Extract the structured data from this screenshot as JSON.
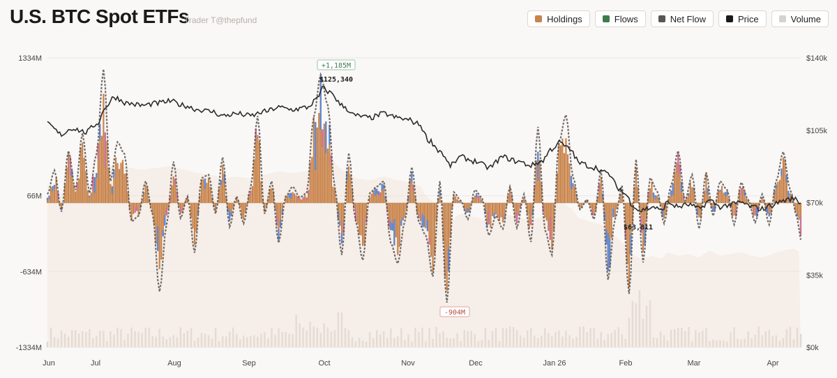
{
  "header": {
    "title": "U.S. BTC Spot ETFs",
    "subtitle": "Trader T@thepfund"
  },
  "legend": [
    {
      "label": "Holdings",
      "color": "#c8834a"
    },
    {
      "label": "Flows",
      "color": "#3f7a4e"
    },
    {
      "label": "Net Flow",
      "color": "#5a5652"
    },
    {
      "label": "Price",
      "color": "#1a1a1a"
    },
    {
      "label": "Volume",
      "color": "#d6d2cd"
    }
  ],
  "colors": {
    "holdings": "#c8834a",
    "flows_blue": "#5b86d6",
    "flows_pink": "#cf6f9a",
    "net_line": "#5a5652",
    "price": "#2a2a2a",
    "volume": "#d9d6d2",
    "annotation_pos": "#3f7a4e",
    "annotation_neg": "#b84a3e"
  },
  "chart_data": {
    "type": "bar",
    "left_axis": {
      "ticks": [
        1334,
        66,
        -634,
        -1334
      ],
      "tick_labels": [
        "1334M",
        "66M",
        "-634M",
        "-1334M"
      ],
      "range": [
        -1334,
        1334
      ]
    },
    "right_axis": {
      "ticks": [
        140000,
        105000,
        70000,
        35000,
        0
      ],
      "tick_labels": [
        "$140k",
        "$105k",
        "$70k",
        "$35k",
        "$0k"
      ],
      "range": [
        0,
        140000
      ]
    },
    "x_ticks": [
      "Jun",
      "Jul",
      "Aug",
      "Sep",
      "Oct",
      "Nov",
      "Dec",
      "Jan 26",
      "Feb",
      "Mar",
      "Apr"
    ],
    "annotations": [
      {
        "label": "+1,185M",
        "kind": "max_flow"
      },
      {
        "label": "$125,340",
        "kind": "max_price"
      },
      {
        "label": "-904M",
        "kind": "min_flow"
      },
      {
        "label": "$63,811",
        "kind": "min_price"
      }
    ],
    "flow_keypoints": [
      [
        0,
        80
      ],
      [
        4,
        300
      ],
      [
        8,
        -80
      ],
      [
        12,
        480
      ],
      [
        16,
        120
      ],
      [
        20,
        640
      ],
      [
        24,
        90
      ],
      [
        28,
        450
      ],
      [
        32,
        1230
      ],
      [
        36,
        200
      ],
      [
        40,
        560
      ],
      [
        44,
        450
      ],
      [
        48,
        -170
      ],
      [
        52,
        -120
      ],
      [
        56,
        200
      ],
      [
        60,
        -100
      ],
      [
        64,
        -820
      ],
      [
        68,
        -200
      ],
      [
        72,
        380
      ],
      [
        76,
        -140
      ],
      [
        80,
        60
      ],
      [
        84,
        -460
      ],
      [
        88,
        230
      ],
      [
        92,
        260
      ],
      [
        96,
        -100
      ],
      [
        100,
        420
      ],
      [
        104,
        -220
      ],
      [
        108,
        60
      ],
      [
        112,
        -190
      ],
      [
        116,
        140
      ],
      [
        120,
        800
      ],
      [
        124,
        -100
      ],
      [
        128,
        200
      ],
      [
        132,
        -370
      ],
      [
        136,
        60
      ],
      [
        140,
        150
      ],
      [
        144,
        50
      ],
      [
        148,
        90
      ],
      [
        152,
        790
      ],
      [
        156,
        1180
      ],
      [
        160,
        900
      ],
      [
        164,
        150
      ],
      [
        168,
        -480
      ],
      [
        172,
        460
      ],
      [
        176,
        -170
      ],
      [
        180,
        -530
      ],
      [
        184,
        90
      ],
      [
        188,
        150
      ],
      [
        192,
        200
      ],
      [
        196,
        -370
      ],
      [
        200,
        -560
      ],
      [
        204,
        -170
      ],
      [
        208,
        330
      ],
      [
        212,
        -180
      ],
      [
        216,
        -300
      ],
      [
        220,
        -680
      ],
      [
        224,
        200
      ],
      [
        228,
        -920
      ],
      [
        232,
        100
      ],
      [
        236,
        20
      ],
      [
        240,
        -150
      ],
      [
        244,
        120
      ],
      [
        248,
        50
      ],
      [
        252,
        -300
      ],
      [
        256,
        -120
      ],
      [
        260,
        -240
      ],
      [
        264,
        150
      ],
      [
        268,
        -230
      ],
      [
        272,
        80
      ],
      [
        276,
        -360
      ],
      [
        280,
        700
      ],
      [
        284,
        -250
      ],
      [
        288,
        -480
      ],
      [
        292,
        560
      ],
      [
        296,
        810
      ],
      [
        300,
        240
      ],
      [
        304,
        -60
      ],
      [
        308,
        30
      ],
      [
        312,
        -150
      ],
      [
        316,
        300
      ],
      [
        320,
        -710
      ],
      [
        324,
        -150
      ],
      [
        328,
        160
      ],
      [
        332,
        -840
      ],
      [
        336,
        400
      ],
      [
        340,
        -550
      ],
      [
        344,
        230
      ],
      [
        348,
        110
      ],
      [
        352,
        -190
      ],
      [
        356,
        160
      ],
      [
        360,
        480
      ],
      [
        364,
        20
      ],
      [
        368,
        260
      ],
      [
        372,
        -240
      ],
      [
        376,
        280
      ],
      [
        380,
        -120
      ],
      [
        384,
        200
      ],
      [
        388,
        120
      ],
      [
        392,
        -200
      ],
      [
        396,
        190
      ],
      [
        400,
        30
      ],
      [
        404,
        -180
      ],
      [
        408,
        80
      ],
      [
        412,
        -200
      ],
      [
        416,
        200
      ],
      [
        420,
        470
      ],
      [
        424,
        120
      ],
      [
        428,
        -140
      ],
      [
        430,
        -340
      ]
    ],
    "price_keypoints": [
      [
        0,
        108000
      ],
      [
        8,
        103000
      ],
      [
        14,
        106000
      ],
      [
        22,
        104000
      ],
      [
        28,
        108000
      ],
      [
        34,
        117000
      ],
      [
        38,
        121000
      ],
      [
        46,
        118000
      ],
      [
        54,
        117000
      ],
      [
        62,
        118000
      ],
      [
        70,
        119000
      ],
      [
        78,
        117000
      ],
      [
        86,
        115000
      ],
      [
        94,
        114000
      ],
      [
        100,
        112000
      ],
      [
        108,
        113000
      ],
      [
        116,
        112000
      ],
      [
        124,
        114000
      ],
      [
        132,
        116000
      ],
      [
        140,
        115000
      ],
      [
        148,
        116000
      ],
      [
        154,
        120000
      ],
      [
        157,
        125300
      ],
      [
        162,
        123000
      ],
      [
        168,
        117000
      ],
      [
        176,
        112000
      ],
      [
        184,
        111000
      ],
      [
        192,
        113000
      ],
      [
        200,
        111000
      ],
      [
        206,
        110000
      ],
      [
        212,
        108000
      ],
      [
        218,
        100000
      ],
      [
        224,
        95000
      ],
      [
        230,
        88000
      ],
      [
        236,
        92000
      ],
      [
        244,
        90000
      ],
      [
        252,
        87000
      ],
      [
        260,
        92000
      ],
      [
        268,
        90000
      ],
      [
        276,
        88000
      ],
      [
        282,
        90000
      ],
      [
        288,
        96000
      ],
      [
        292,
        99000
      ],
      [
        298,
        96000
      ],
      [
        304,
        89000
      ],
      [
        312,
        87000
      ],
      [
        320,
        84000
      ],
      [
        326,
        77000
      ],
      [
        330,
        74000
      ],
      [
        334,
        69000
      ],
      [
        338,
        66000
      ],
      [
        342,
        67000
      ],
      [
        346,
        68000
      ],
      [
        350,
        66000
      ],
      [
        354,
        70000
      ],
      [
        360,
        68000
      ],
      [
        366,
        69000
      ],
      [
        372,
        67000
      ],
      [
        378,
        71000
      ],
      [
        384,
        68000
      ],
      [
        390,
        69000
      ],
      [
        396,
        70000
      ],
      [
        402,
        68000
      ],
      [
        408,
        67000
      ],
      [
        414,
        69000
      ],
      [
        420,
        71000
      ],
      [
        426,
        72000
      ],
      [
        430,
        70000
      ]
    ]
  }
}
